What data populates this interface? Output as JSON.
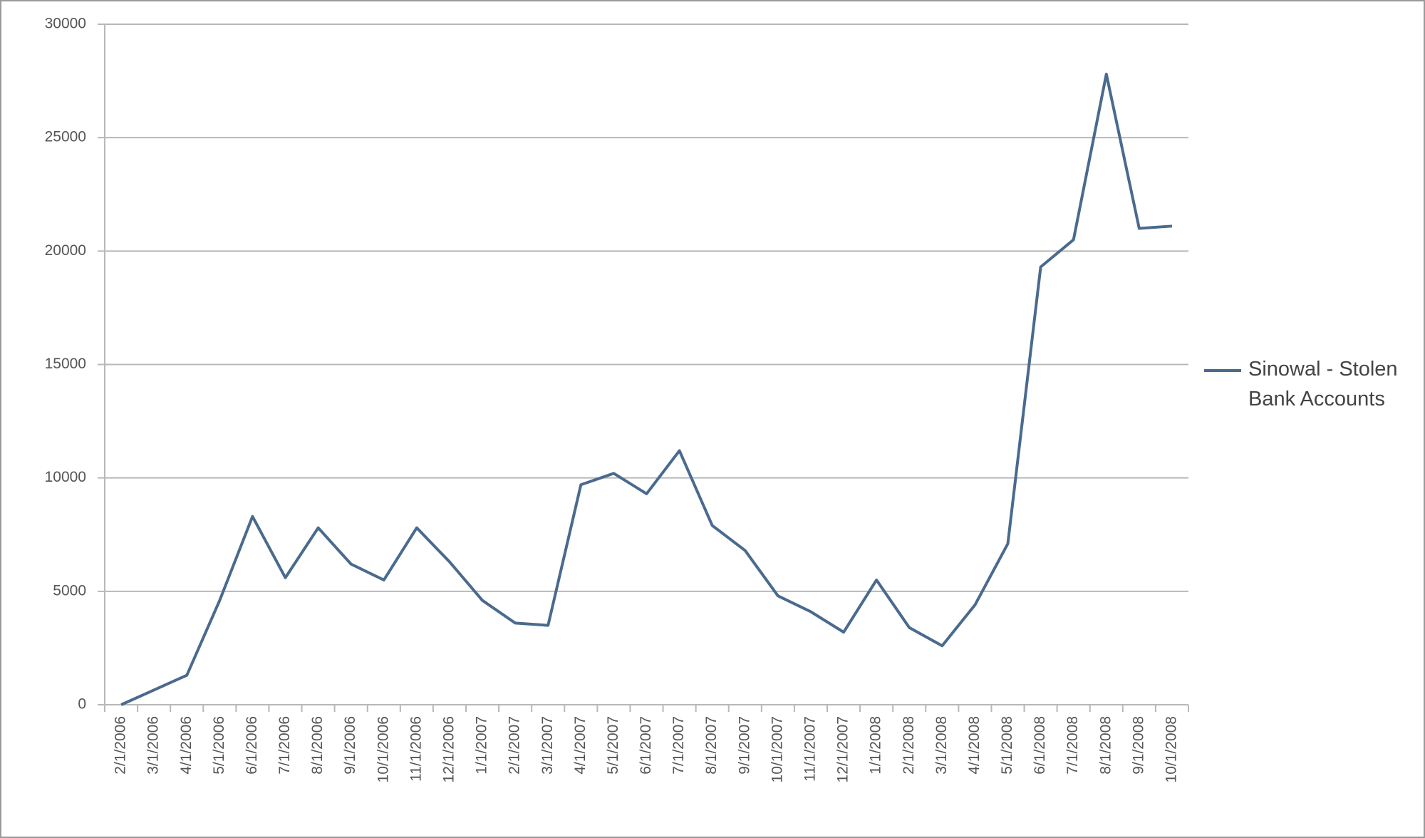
{
  "chart_data": {
    "type": "line",
    "categories": [
      "2/1/2006",
      "3/1/2006",
      "4/1/2006",
      "5/1/2006",
      "6/1/2006",
      "7/1/2006",
      "8/1/2006",
      "9/1/2006",
      "10/1/2006",
      "11/1/2006",
      "12/1/2006",
      "1/1/2007",
      "2/1/2007",
      "3/1/2007",
      "4/1/2007",
      "5/1/2007",
      "6/1/2007",
      "7/1/2007",
      "8/1/2007",
      "9/1/2007",
      "10/1/2007",
      "11/1/2007",
      "12/1/2007",
      "1/1/2008",
      "2/1/2008",
      "3/1/2008",
      "4/1/2008",
      "5/1/2008",
      "6/1/2008",
      "7/1/2008",
      "8/1/2008",
      "9/1/2008",
      "10/1/2008"
    ],
    "series": [
      {
        "name": "Sinowal - Stolen Bank Accounts",
        "color": "#4a6a8e",
        "values": [
          0,
          650,
          1300,
          4600,
          8300,
          5600,
          7800,
          6200,
          5500,
          7800,
          6300,
          4600,
          3600,
          3500,
          9700,
          10200,
          9300,
          11200,
          7900,
          6800,
          4800,
          4100,
          3200,
          5500,
          3400,
          2600,
          4400,
          7100,
          19300,
          20500,
          27800,
          21000,
          21100
        ]
      }
    ],
    "ylim": [
      0,
      30000
    ],
    "yticks": [
      0,
      5000,
      10000,
      15000,
      20000,
      25000,
      30000
    ],
    "grid": true,
    "legend": "right"
  }
}
